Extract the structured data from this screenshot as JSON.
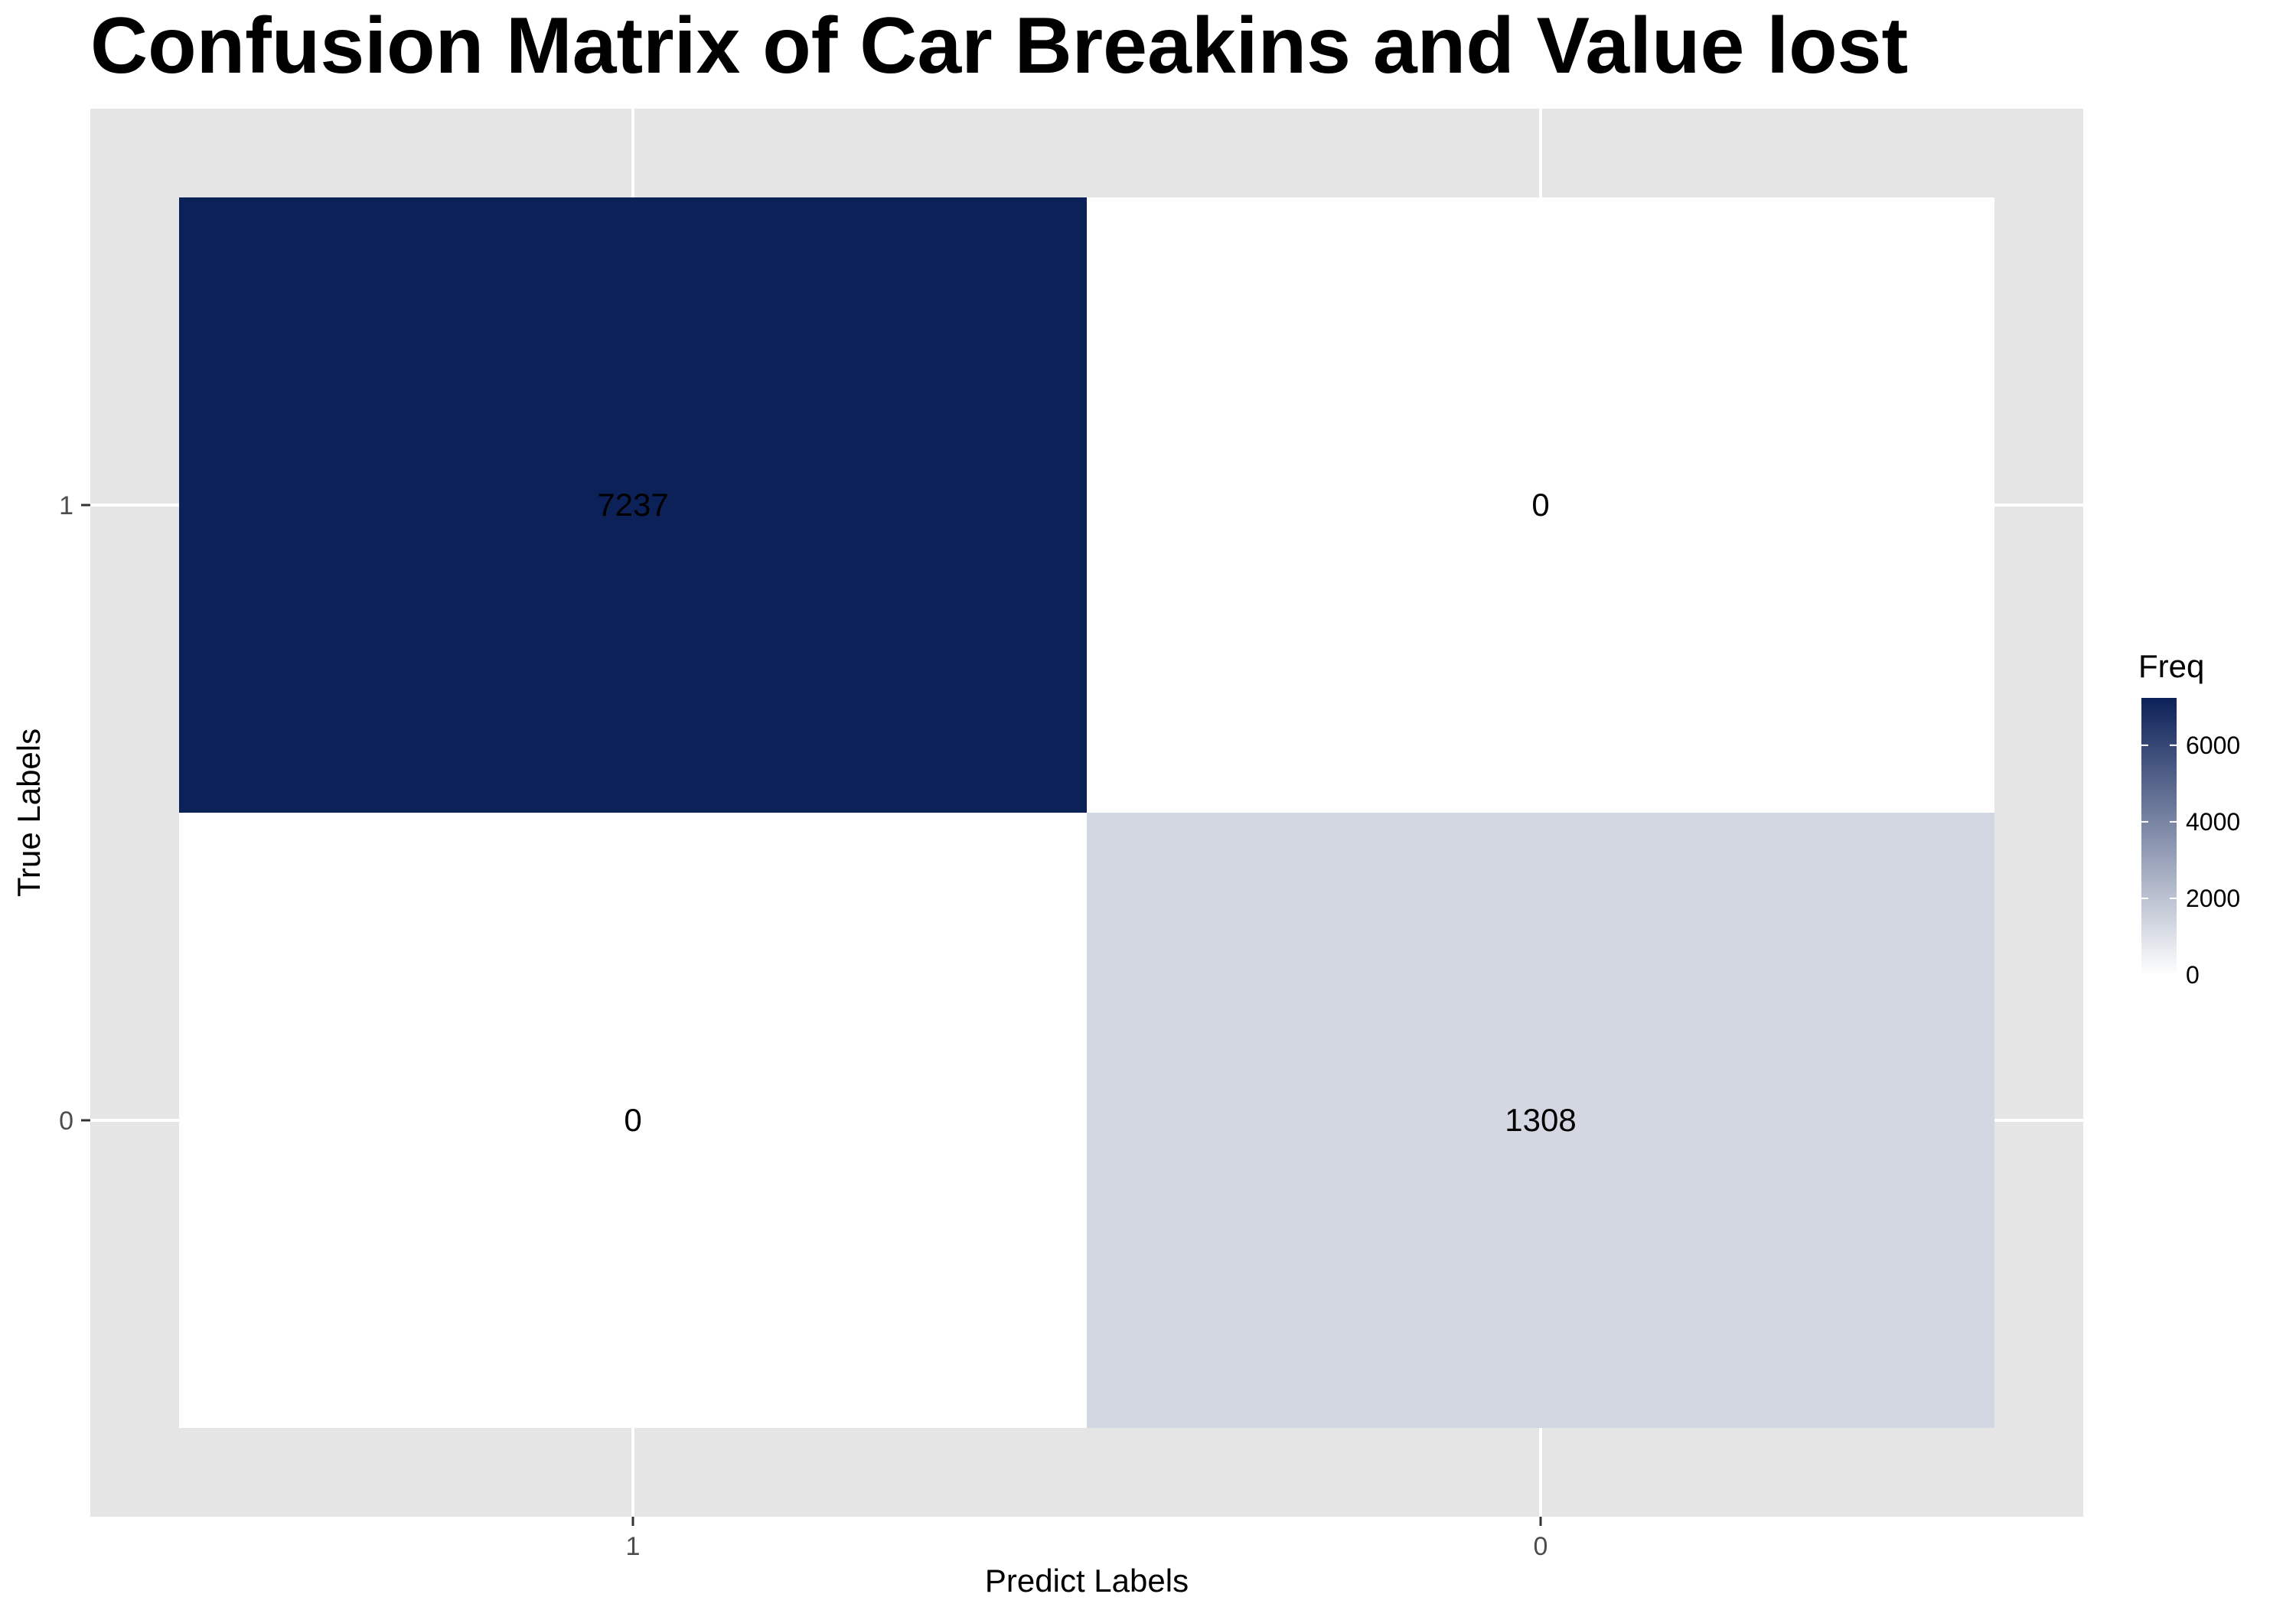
{
  "chart_data": {
    "type": "heatmap",
    "title": "Confusion Matrix of Car Breakins and Value lost",
    "xlabel": "Predict Labels",
    "ylabel": "True Labels",
    "x_categories": [
      "1",
      "0"
    ],
    "y_categories": [
      "1",
      "0"
    ],
    "cells": [
      {
        "x": "1",
        "y": "1",
        "value": 7237
      },
      {
        "x": "0",
        "y": "1",
        "value": 0
      },
      {
        "x": "1",
        "y": "0",
        "value": 0
      },
      {
        "x": "0",
        "y": "0",
        "value": 1308
      }
    ],
    "legend": {
      "title": "Freq",
      "position": "right",
      "ticks": [
        0,
        2000,
        4000,
        6000
      ],
      "range": [
        0,
        7237
      ],
      "low_color": "#ffffff",
      "high_color": "#0c2158"
    },
    "grid": true,
    "panel_background": "#e5e5e5"
  }
}
